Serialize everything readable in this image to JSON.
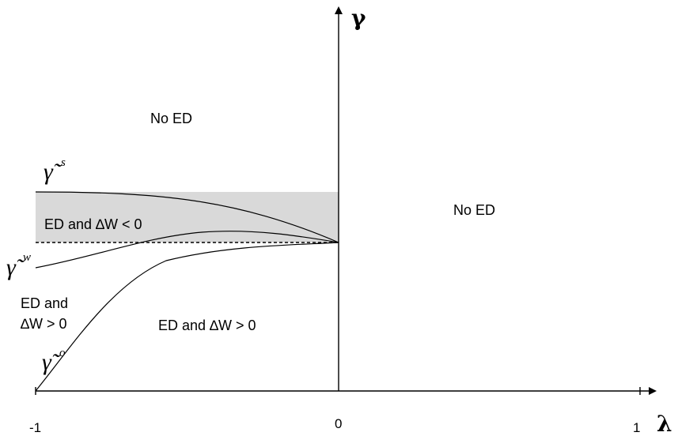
{
  "colors": {
    "line": "#000000",
    "shaded_region": "#d9d9d9"
  },
  "axes": {
    "x_label": "λ",
    "y_label": "γ",
    "x_ticks": [
      "-1",
      "0",
      "1"
    ]
  },
  "regions": {
    "upper_left": "No ED",
    "right": "No ED",
    "shaded": "ED and ∆W < 0",
    "lower_left_line1": "ED and",
    "lower_left_line2": "∆W > 0",
    "lower_middle": "ED and ∆W > 0"
  },
  "curves": {
    "gamma_s": {
      "symbol": "γ̃",
      "superscript": "s"
    },
    "gamma_w": {
      "symbol": "γ̃",
      "superscript": "w"
    },
    "gamma_o": {
      "symbol": "γ̃",
      "superscript": "o"
    }
  }
}
